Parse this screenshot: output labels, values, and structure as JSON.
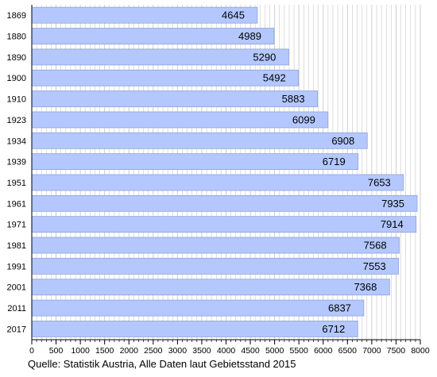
{
  "source_text": "Quelle: Statistik Austria, Alle Daten laut Gebietsstand 2015",
  "colors": {
    "bar_fill": "#b4c8ff",
    "bar_stroke": "#8ea2d8",
    "grid": "#c8c8c8",
    "axis": "#000000"
  },
  "chart_data": {
    "type": "bar",
    "orientation": "horizontal",
    "title": "",
    "xlabel": "",
    "ylabel": "",
    "categories": [
      "1869",
      "1880",
      "1890",
      "1900",
      "1910",
      "1923",
      "1934",
      "1939",
      "1951",
      "1961",
      "1971",
      "1981",
      "1991",
      "2001",
      "2011",
      "2017"
    ],
    "values": [
      4645,
      4989,
      5290,
      5492,
      5883,
      6099,
      6908,
      6719,
      7653,
      7935,
      7914,
      7568,
      7553,
      7368,
      6837,
      6712
    ],
    "xlim": [
      0,
      8000
    ],
    "major_ticks": [
      0,
      500,
      1000,
      1500,
      2000,
      2500,
      3000,
      3500,
      4000,
      4500,
      5000,
      5500,
      6000,
      6500,
      7000,
      7500,
      8000
    ],
    "minor_tick_step": 100,
    "grid": true,
    "legend": "none"
  }
}
